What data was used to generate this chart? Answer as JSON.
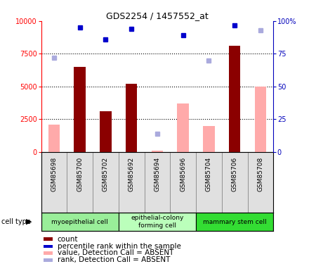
{
  "title": "GDS2254 / 1457552_at",
  "samples": [
    "GSM85698",
    "GSM85700",
    "GSM85702",
    "GSM85692",
    "GSM85694",
    "GSM85696",
    "GSM85704",
    "GSM85706",
    "GSM85708"
  ],
  "cell_types": [
    {
      "label": "myoepithelial cell",
      "color": "#99ee99",
      "start": 0,
      "end": 3
    },
    {
      "label": "epithelial-colony\nforming cell",
      "color": "#bbffbb",
      "start": 3,
      "end": 6
    },
    {
      "label": "mammary stem cell",
      "color": "#33dd33",
      "start": 6,
      "end": 9
    }
  ],
  "count": [
    null,
    6500,
    3100,
    5200,
    null,
    null,
    null,
    8100,
    null
  ],
  "percentile_rank": [
    null,
    9500,
    8600,
    9400,
    null,
    8900,
    null,
    9700,
    null
  ],
  "value_absent": [
    2100,
    null,
    null,
    null,
    100,
    3700,
    2000,
    null,
    5000
  ],
  "rank_absent": [
    7200,
    null,
    null,
    null,
    1400,
    null,
    7000,
    null,
    9300
  ],
  "ymax": 10000,
  "yticks": [
    0,
    2500,
    5000,
    7500,
    10000
  ],
  "ytick_labels_left": [
    "0",
    "2500",
    "5000",
    "7500",
    "10000"
  ],
  "ytick_labels_right": [
    "0",
    "25",
    "50",
    "75",
    "100%"
  ],
  "bar_color_count": "#8b0000",
  "bar_color_absent": "#ffaaaa",
  "dot_color_rank": "#0000cc",
  "dot_color_rank_absent": "#aaaadd",
  "legend_items": [
    {
      "label": "count",
      "color": "#8b0000"
    },
    {
      "label": "percentile rank within the sample",
      "color": "#0000cc"
    },
    {
      "label": "value, Detection Call = ABSENT",
      "color": "#ffaaaa"
    },
    {
      "label": "rank, Detection Call = ABSENT",
      "color": "#aaaadd"
    }
  ]
}
